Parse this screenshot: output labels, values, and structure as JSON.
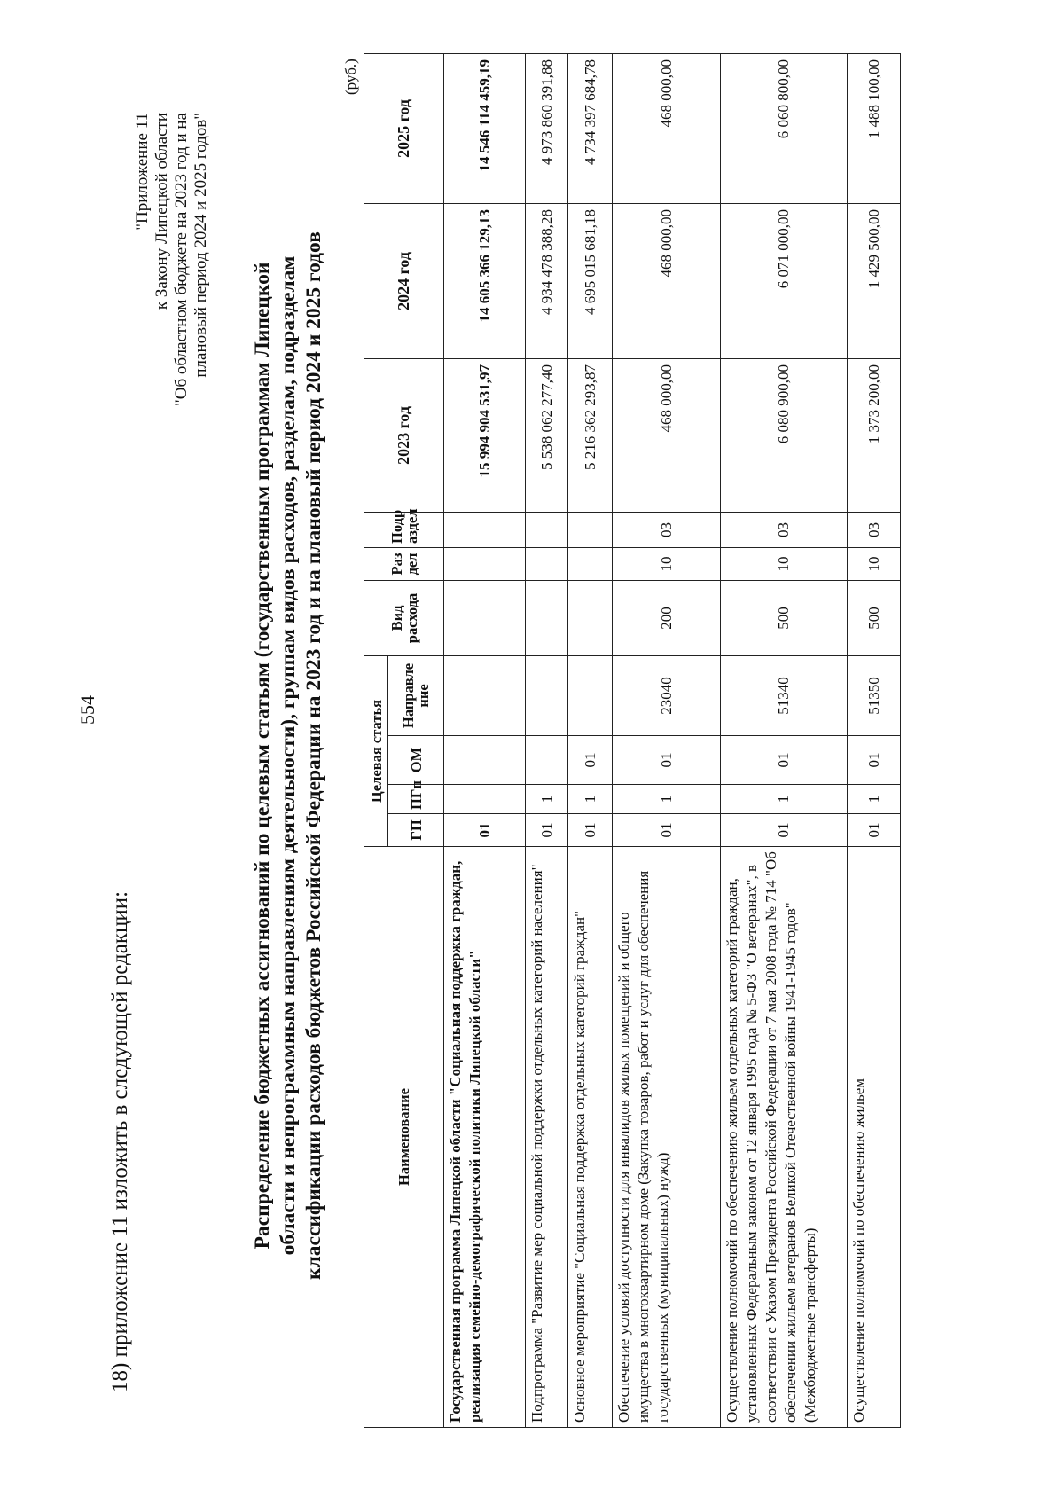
{
  "page_number": "554",
  "intro": "18) приложение 11 изложить в следующей редакции:",
  "appendix_lines": [
    "\"Приложение 11",
    "к Закону Липецкой области",
    "\"Об областном бюджете на 2023 год и на",
    "плановый период 2024 и 2025 годов\""
  ],
  "title_lines": [
    "Распределение бюджетных ассигнований по целевым статьям (государственным программам Липецкой",
    "области и непрограммным направлениям деятельности), группам видов расходов, разделам, подразделам",
    "классификации расходов бюджетов Российской Федерации на 2023 год и на плановый период 2024 и 2025 годов"
  ],
  "unit": "(руб.)",
  "table": {
    "headers": {
      "name": "Наименование",
      "target_group": "Целевая статья",
      "gp": "ГП",
      "pgp": "ПГп",
      "om": "ОМ",
      "direction": "Направле ние",
      "vid": "Вид расхода",
      "razdel": "Раз дел",
      "podrazdel": "Подр аздел",
      "y2023": "2023 год",
      "y2024": "2024 год",
      "y2025": "2025 год"
    },
    "rows": [
      {
        "bold": true,
        "name": "Государственная программа Липецкой области \"Социальная поддержка граждан, реализация семейно-демографической политики Липецкой области\"",
        "gp": "01",
        "pgp": "",
        "om": "",
        "direction": "",
        "vid": "",
        "razdel": "",
        "podrazdel": "",
        "y2023": "15 994 904 531,97",
        "y2024": "14 605 366 129,13",
        "y2025": "14 546 114 459,19"
      },
      {
        "bold": false,
        "name": "Подпрограмма \"Развитие мер социальной поддержки отдельных категорий населения\"",
        "gp": "01",
        "pgp": "1",
        "om": "",
        "direction": "",
        "vid": "",
        "razdel": "",
        "podrazdel": "",
        "y2023": "5 538 062 277,40",
        "y2024": "4 934 478 388,28",
        "y2025": "4 973 860 391,88"
      },
      {
        "bold": false,
        "name": "Основное мероприятие \"Социальная поддержка отдельных категорий граждан\"",
        "gp": "01",
        "pgp": "1",
        "om": "01",
        "direction": "",
        "vid": "",
        "razdel": "",
        "podrazdel": "",
        "y2023": "5 216 362 293,87",
        "y2024": "4 695 015 681,18",
        "y2025": "4 734 397 684,78"
      },
      {
        "bold": false,
        "name": "Обеспечение условий доступности для инвалидов жилых помещений и общего имущества в многоквартирном доме (Закупка товаров, работ и услуг для обеспечения государственных (муниципальных) нужд)",
        "gp": "01",
        "pgp": "1",
        "om": "01",
        "direction": "23040",
        "vid": "200",
        "razdel": "10",
        "podrazdel": "03",
        "y2023": "468 000,00",
        "y2024": "468 000,00",
        "y2025": "468 000,00"
      },
      {
        "bold": false,
        "name": "Осуществление полномочий по обеспечению жильем отдельных категорий граждан, установленных Федеральным законом от 12 января 1995 года № 5-ФЗ \"О ветеранах\", в соответствии с Указом Президента Российской Федерации от 7 мая 2008 года № 714 \"Об обеспечении жильем ветеранов Великой Отечественной войны 1941-1945 годов\" (Межбюджетные трансферты)",
        "gp": "01",
        "pgp": "1",
        "om": "01",
        "direction": "51340",
        "vid": "500",
        "razdel": "10",
        "podrazdel": "03",
        "y2023": "6 080 900,00",
        "y2024": "6 071 000,00",
        "y2025": "6 060 800,00"
      },
      {
        "bold": false,
        "name": "Осуществление полномочий по обеспечению жильем",
        "gp": "01",
        "pgp": "1",
        "om": "01",
        "direction": "51350",
        "vid": "500",
        "razdel": "10",
        "podrazdel": "03",
        "y2023": "1 373 200,00",
        "y2024": "1 429 500,00",
        "y2025": "1 488 100,00"
      }
    ]
  }
}
